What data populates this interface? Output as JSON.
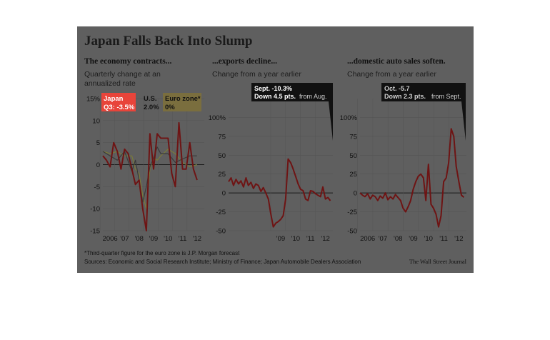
{
  "figure": {
    "title": "Japan Falls Back Into Slump",
    "footnote": "*Third-quarter figure for the euro zone is J.P. Morgan forecast",
    "sources": "Sources: Economic and Social Research Institute; Ministry of Finance; Japan Automobile Dealers Association",
    "credit": "The Wall Street Journal"
  },
  "colors": {
    "background": "#5f5f5f",
    "japan_line": "#6e1414",
    "japan_old_line": "#e23b3b",
    "us_line": "#3a3a3a",
    "euro_line": "#7a7a3a",
    "japan_label_bg": "#e8443a",
    "euro_label_bg": "#7a6e3e",
    "callout_bg": "#111111"
  },
  "chart_data": [
    {
      "type": "line",
      "subtitle": "The economy contracts...",
      "description": [
        "Quarterly change at an",
        "annualized rate"
      ],
      "ylim": [
        -15,
        15
      ],
      "y_ticks": [
        "15%",
        "10",
        "5",
        "0",
        "-5",
        "-10",
        "-15"
      ],
      "y_tick_values": [
        15,
        10,
        5,
        0,
        -5,
        -10,
        -15
      ],
      "xlim": [
        2006,
        2013
      ],
      "x_ticks": [
        "2006",
        "'07",
        "'08",
        "'09",
        "'10",
        "'11",
        "'12"
      ],
      "x_tick_values": [
        2006.5,
        2007.5,
        2008.5,
        2009.5,
        2010.5,
        2011.5,
        2012.5
      ],
      "legend": [
        {
          "name": "Japan",
          "value": "Q3: -3.5%"
        },
        {
          "name": "U.S.",
          "value": "2.0%"
        },
        {
          "name": "Euro zone*",
          "value": "0%"
        }
      ],
      "series": [
        {
          "name": "Japan",
          "x": [
            2006.0,
            2006.25,
            2006.5,
            2006.75,
            2007.0,
            2007.25,
            2007.5,
            2007.75,
            2008.0,
            2008.25,
            2008.5,
            2008.75,
            2009.0,
            2009.25,
            2009.5,
            2009.75,
            2010.0,
            2010.25,
            2010.5,
            2010.75,
            2011.0,
            2011.25,
            2011.5,
            2011.75,
            2012.0,
            2012.25,
            2012.5
          ],
          "values": [
            2,
            1,
            -0.5,
            5,
            3,
            -1,
            3.5,
            2.5,
            -1,
            -4.5,
            -3.5,
            -10,
            -15,
            7,
            -1,
            7,
            6,
            6,
            6,
            -2,
            -5,
            9.5,
            -1,
            -1,
            5,
            -1,
            -3.5
          ]
        },
        {
          "name": "U.S.",
          "x": [
            2006.0,
            2006.5,
            2007.0,
            2007.5,
            2008.0,
            2008.25,
            2008.5,
            2008.75,
            2009.0,
            2009.25,
            2009.5,
            2009.75,
            2010.0,
            2010.5,
            2011.0,
            2011.5,
            2012.0,
            2012.5
          ],
          "values": [
            3,
            2,
            1,
            3,
            -1.5,
            1,
            -3.5,
            -8.5,
            -5,
            -0.5,
            1.5,
            4,
            2.5,
            2.5,
            0.5,
            1.3,
            2,
            2
          ]
        },
        {
          "name": "Euro zone*",
          "x": [
            2006.0,
            2006.5,
            2007.0,
            2007.5,
            2008.0,
            2008.25,
            2008.5,
            2008.75,
            2009.0,
            2009.25,
            2009.5,
            2009.75,
            2010.0,
            2010.5,
            2011.0,
            2011.5,
            2012.0,
            2012.5
          ],
          "values": [
            3,
            2.5,
            3,
            2,
            2,
            -1,
            -2,
            -7,
            -10,
            -1,
            1.5,
            1,
            2,
            3.5,
            2.5,
            0.5,
            -0.5,
            0
          ]
        }
      ]
    },
    {
      "type": "line",
      "subtitle": "...exports decline...",
      "description": [
        "Change from a year earlier"
      ],
      "ylim": [
        -50,
        125
      ],
      "y_ticks": [
        "100%",
        "75",
        "50",
        "25",
        "0",
        "-25",
        "-50"
      ],
      "y_tick_values": [
        100,
        75,
        50,
        25,
        0,
        -25,
        -50
      ],
      "xlim": [
        2006,
        2013
      ],
      "x_ticks": [
        "'09",
        "'10",
        "'11",
        "'12"
      ],
      "x_tick_values": [
        2009.5,
        2010.5,
        2011.5,
        2012.5
      ],
      "annotation": {
        "line1": "Sept. -10.3%",
        "line2_bold": "Down 4.5 pts.",
        "line2_rest": "from Aug."
      },
      "series": [
        {
          "name": "Japan",
          "x": [
            2006.0,
            2006.17,
            2006.33,
            2006.5,
            2006.67,
            2006.83,
            2007.0,
            2007.17,
            2007.33,
            2007.5,
            2007.67,
            2007.83,
            2008.0,
            2008.17,
            2008.33,
            2008.5,
            2008.67,
            2008.83,
            2009.0,
            2009.17,
            2009.33,
            2009.5,
            2009.67,
            2009.83,
            2010.0,
            2010.17,
            2010.33,
            2010.5,
            2010.67,
            2010.83,
            2011.0,
            2011.17,
            2011.33,
            2011.5,
            2011.67,
            2011.83,
            2012.0,
            2012.17,
            2012.33,
            2012.5,
            2012.67,
            2012.83
          ],
          "values": [
            15,
            20,
            10,
            18,
            12,
            16,
            8,
            20,
            10,
            14,
            6,
            12,
            10,
            2,
            7,
            0,
            -8,
            -27,
            -45,
            -40,
            -38,
            -35,
            -30,
            -8,
            45,
            40,
            32,
            22,
            12,
            5,
            3,
            -8,
            -10,
            3,
            2,
            -1,
            -3,
            -5,
            8,
            -8,
            -6,
            -10.3
          ]
        }
      ]
    },
    {
      "type": "line",
      "subtitle": "...domestic auto sales soften.",
      "description": [
        "Change from a year earlier"
      ],
      "ylim": [
        -50,
        125
      ],
      "y_ticks": [
        "100%",
        "75",
        "50",
        "25",
        "0",
        "-25",
        "-50"
      ],
      "y_tick_values": [
        100,
        75,
        50,
        25,
        0,
        -25,
        -50
      ],
      "xlim": [
        2006,
        2013
      ],
      "x_ticks": [
        "2006",
        "'07",
        "'08",
        "'09",
        "'10",
        "'11",
        "'12"
      ],
      "x_tick_values": [
        2006.5,
        2007.5,
        2008.5,
        2009.5,
        2010.5,
        2011.5,
        2012.5
      ],
      "annotation": {
        "line1": "Oct. -5.7",
        "line2_bold": "Down 2.3 pts.",
        "line2_rest": "from Sept."
      },
      "series": [
        {
          "name": "Japan",
          "x": [
            2006.0,
            2006.17,
            2006.33,
            2006.5,
            2006.67,
            2006.83,
            2007.0,
            2007.17,
            2007.33,
            2007.5,
            2007.67,
            2007.83,
            2008.0,
            2008.17,
            2008.33,
            2008.5,
            2008.67,
            2008.83,
            2009.0,
            2009.17,
            2009.33,
            2009.5,
            2009.67,
            2009.83,
            2010.0,
            2010.17,
            2010.33,
            2010.5,
            2010.67,
            2010.83,
            2011.0,
            2011.17,
            2011.33,
            2011.5,
            2011.67,
            2011.83,
            2012.0,
            2012.17,
            2012.33,
            2012.5,
            2012.67,
            2012.83
          ],
          "values": [
            0,
            -3,
            -5,
            -1,
            -8,
            -3,
            -5,
            -10,
            -4,
            -7,
            0,
            -9,
            -5,
            -8,
            -2,
            -6,
            -10,
            -20,
            -25,
            -18,
            -10,
            5,
            15,
            22,
            25,
            20,
            -10,
            38,
            -15,
            -20,
            -28,
            -45,
            -30,
            15,
            20,
            40,
            85,
            75,
            35,
            15,
            -3,
            -5.7
          ]
        }
      ]
    }
  ]
}
